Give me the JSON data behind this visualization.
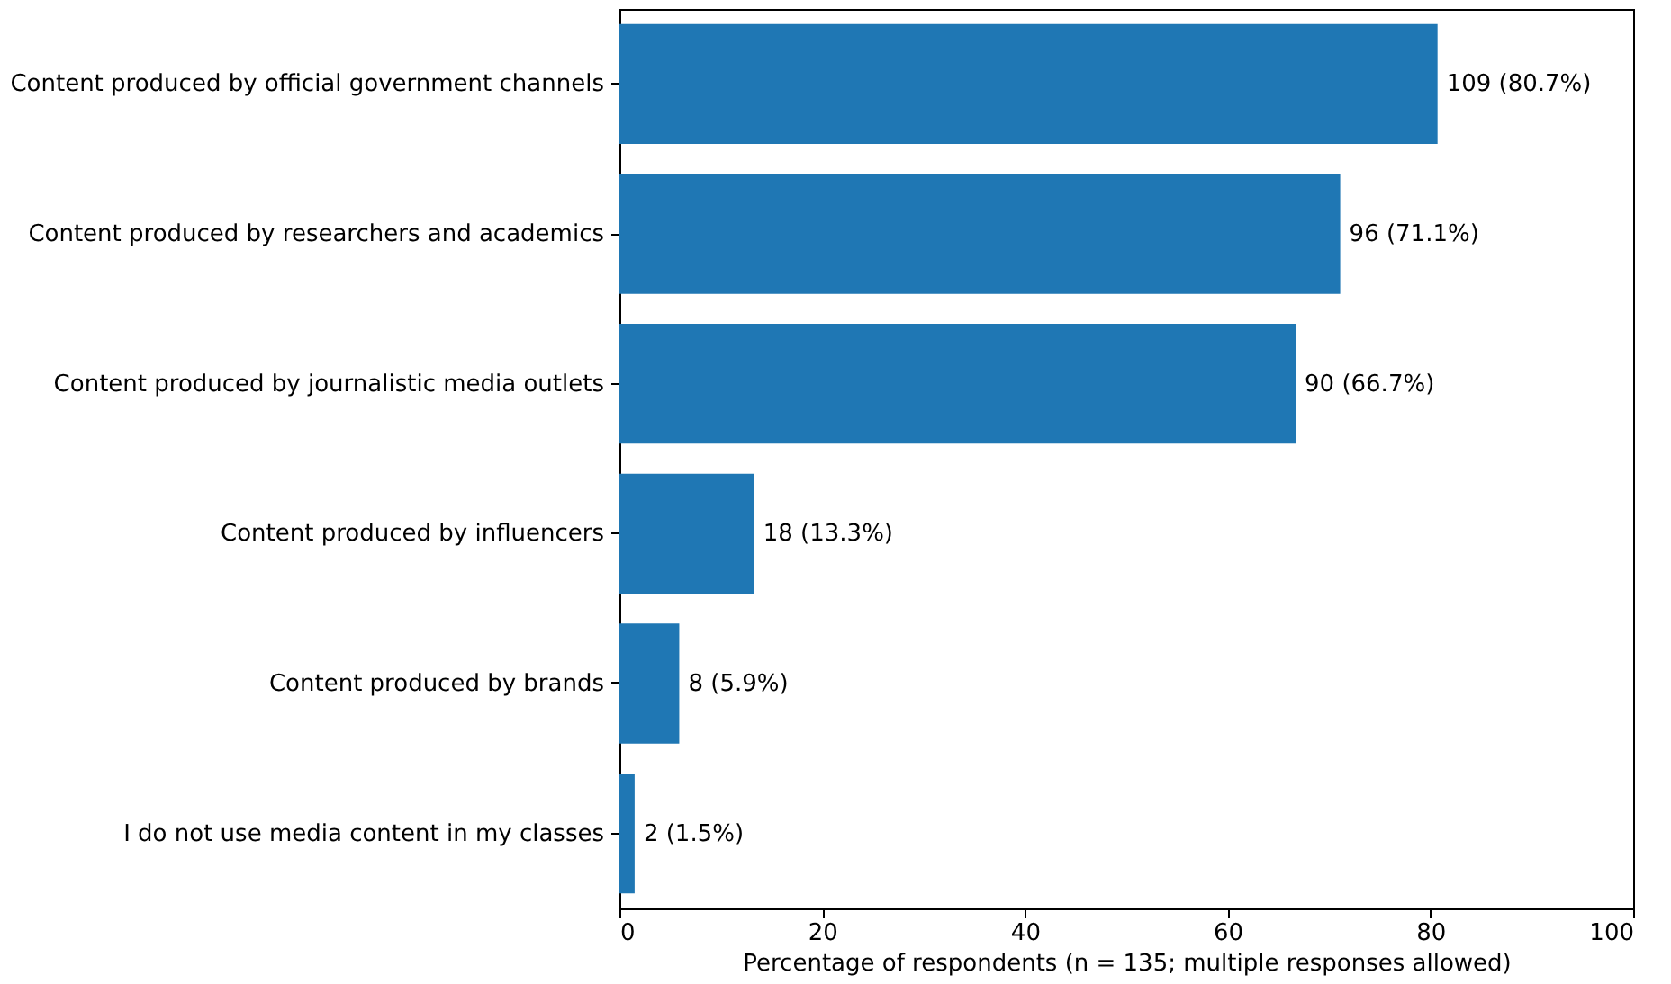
{
  "chart_data": {
    "type": "bar",
    "orientation": "horizontal",
    "xlabel": "Percentage of respondents (n = 135; multiple responses allowed)",
    "categories": [
      "Content produced by official government channels",
      "Content produced by researchers and academics",
      "Content produced by journalistic media outlets",
      "Content produced by influencers",
      "Content produced by brands",
      "I do not use media content in my classes"
    ],
    "values": [
      80.7,
      71.1,
      66.7,
      13.3,
      5.9,
      1.5
    ],
    "value_labels": [
      "109 (80.7%)",
      "96 (71.1%)",
      "90 (66.7%)",
      "18 (13.3%)",
      "8 (5.9%)",
      "2 (1.5%)"
    ],
    "color": "#1f77b4",
    "xlim": [
      0,
      100
    ],
    "xticks": [
      0,
      20,
      40,
      60,
      80,
      100
    ],
    "grid": false
  }
}
